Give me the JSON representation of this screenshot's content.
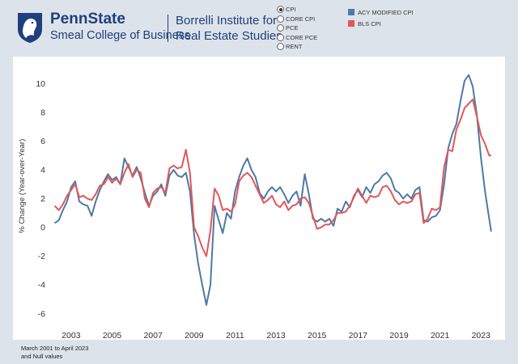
{
  "header": {
    "brand_name": "PennState",
    "brand_college": "Smeal College of Business",
    "institute_line1": "Borrelli Institute for",
    "institute_line2": "Real Estate Studies"
  },
  "measure_options": [
    {
      "label": "CPI",
      "selected": true
    },
    {
      "label": "CORE CPI",
      "selected": false
    },
    {
      "label": "PCE",
      "selected": false
    },
    {
      "label": "CORE PCE",
      "selected": false
    },
    {
      "label": "RENT",
      "selected": false
    }
  ],
  "legend": [
    {
      "label": "ACY MODIFIED CPI",
      "color": "#4e79a7"
    },
    {
      "label": "BLS CPI",
      "color": "#e15759"
    }
  ],
  "footnote": {
    "line1": "March 2001 to April 2023",
    "line2": "and Null values"
  },
  "chart_data": {
    "type": "line",
    "ylabel": "% Change (Year-over-Year)",
    "xlabel": "",
    "title": "",
    "xlim": [
      2001.9,
      2023.7
    ],
    "ylim": [
      -6.8,
      11.2
    ],
    "y_ticks": [
      10,
      8,
      6,
      4,
      2,
      0,
      -2,
      -4,
      -6
    ],
    "x_ticks": [
      2003,
      2005,
      2007,
      2009,
      2011,
      2013,
      2015,
      2017,
      2019,
      2021,
      2023
    ],
    "grid": false,
    "series": [
      {
        "name": "ACY MODIFIED CPI",
        "color": "#4e79a7",
        "points": [
          [
            2002.2,
            0.3
          ],
          [
            2002.4,
            0.5
          ],
          [
            2002.6,
            1.2
          ],
          [
            2002.8,
            1.8
          ],
          [
            2003.0,
            2.8
          ],
          [
            2003.2,
            3.2
          ],
          [
            2003.4,
            1.8
          ],
          [
            2003.6,
            1.6
          ],
          [
            2003.8,
            1.5
          ],
          [
            2004.0,
            0.8
          ],
          [
            2004.2,
            1.8
          ],
          [
            2004.4,
            2.6
          ],
          [
            2004.6,
            3.2
          ],
          [
            2004.8,
            3.7
          ],
          [
            2005.0,
            3.3
          ],
          [
            2005.2,
            3.5
          ],
          [
            2005.4,
            3.0
          ],
          [
            2005.6,
            4.8
          ],
          [
            2005.8,
            4.2
          ],
          [
            2006.0,
            3.6
          ],
          [
            2006.2,
            4.2
          ],
          [
            2006.4,
            3.4
          ],
          [
            2006.6,
            2.4
          ],
          [
            2006.8,
            1.5
          ],
          [
            2007.0,
            2.2
          ],
          [
            2007.2,
            2.5
          ],
          [
            2007.4,
            3.0
          ],
          [
            2007.6,
            2.2
          ],
          [
            2007.8,
            3.6
          ],
          [
            2008.0,
            4.0
          ],
          [
            2008.2,
            3.6
          ],
          [
            2008.4,
            3.5
          ],
          [
            2008.6,
            3.8
          ],
          [
            2008.8,
            2.5
          ],
          [
            2009.0,
            -0.5
          ],
          [
            2009.2,
            -2.5
          ],
          [
            2009.4,
            -4.0
          ],
          [
            2009.6,
            -5.4
          ],
          [
            2009.8,
            -4.0
          ],
          [
            2010.0,
            1.5
          ],
          [
            2010.2,
            0.5
          ],
          [
            2010.4,
            -0.4
          ],
          [
            2010.6,
            1.0
          ],
          [
            2010.8,
            0.6
          ],
          [
            2011.0,
            2.5
          ],
          [
            2011.2,
            3.5
          ],
          [
            2011.4,
            4.3
          ],
          [
            2011.6,
            4.8
          ],
          [
            2011.8,
            4.0
          ],
          [
            2012.0,
            3.5
          ],
          [
            2012.2,
            2.4
          ],
          [
            2012.4,
            2.0
          ],
          [
            2012.6,
            2.5
          ],
          [
            2012.8,
            2.8
          ],
          [
            2013.0,
            2.5
          ],
          [
            2013.2,
            2.8
          ],
          [
            2013.4,
            2.3
          ],
          [
            2013.6,
            1.7
          ],
          [
            2013.8,
            2.2
          ],
          [
            2014.0,
            2.5
          ],
          [
            2014.2,
            1.5
          ],
          [
            2014.4,
            3.7
          ],
          [
            2014.6,
            2.3
          ],
          [
            2014.8,
            0.6
          ],
          [
            2015.0,
            0.4
          ],
          [
            2015.2,
            0.6
          ],
          [
            2015.4,
            0.4
          ],
          [
            2015.6,
            0.6
          ],
          [
            2015.8,
            0.1
          ],
          [
            2016.0,
            1.3
          ],
          [
            2016.2,
            1.1
          ],
          [
            2016.4,
            1.8
          ],
          [
            2016.6,
            1.4
          ],
          [
            2016.8,
            2.2
          ],
          [
            2017.0,
            2.6
          ],
          [
            2017.2,
            2.1
          ],
          [
            2017.4,
            2.8
          ],
          [
            2017.6,
            2.4
          ],
          [
            2017.8,
            3.0
          ],
          [
            2018.0,
            3.2
          ],
          [
            2018.2,
            3.6
          ],
          [
            2018.4,
            3.8
          ],
          [
            2018.6,
            3.4
          ],
          [
            2018.8,
            2.6
          ],
          [
            2019.0,
            2.4
          ],
          [
            2019.2,
            2.0
          ],
          [
            2019.4,
            2.3
          ],
          [
            2019.6,
            2.0
          ],
          [
            2019.8,
            2.6
          ],
          [
            2020.0,
            2.8
          ],
          [
            2020.2,
            0.5
          ],
          [
            2020.4,
            0.4
          ],
          [
            2020.6,
            0.7
          ],
          [
            2020.8,
            0.8
          ],
          [
            2021.0,
            1.2
          ],
          [
            2021.2,
            3.0
          ],
          [
            2021.4,
            5.5
          ],
          [
            2021.6,
            6.5
          ],
          [
            2021.8,
            7.2
          ],
          [
            2022.0,
            8.8
          ],
          [
            2022.2,
            10.2
          ],
          [
            2022.4,
            10.6
          ],
          [
            2022.6,
            9.8
          ],
          [
            2022.8,
            7.8
          ],
          [
            2023.0,
            4.8
          ],
          [
            2023.2,
            2.5
          ],
          [
            2023.4,
            0.6
          ],
          [
            2023.5,
            -0.3
          ]
        ]
      },
      {
        "name": "BLS CPI",
        "color": "#e15759",
        "points": [
          [
            2002.2,
            1.5
          ],
          [
            2002.4,
            1.2
          ],
          [
            2002.6,
            1.6
          ],
          [
            2002.8,
            2.2
          ],
          [
            2003.0,
            2.6
          ],
          [
            2003.2,
            3.0
          ],
          [
            2003.4,
            2.1
          ],
          [
            2003.6,
            2.2
          ],
          [
            2003.8,
            2.0
          ],
          [
            2004.0,
            1.9
          ],
          [
            2004.2,
            2.3
          ],
          [
            2004.4,
            2.9
          ],
          [
            2004.6,
            3.0
          ],
          [
            2004.8,
            3.5
          ],
          [
            2005.0,
            3.1
          ],
          [
            2005.2,
            3.4
          ],
          [
            2005.4,
            3.0
          ],
          [
            2005.6,
            3.8
          ],
          [
            2005.8,
            4.4
          ],
          [
            2006.0,
            3.5
          ],
          [
            2006.2,
            4.0
          ],
          [
            2006.4,
            3.8
          ],
          [
            2006.6,
            2.0
          ],
          [
            2006.8,
            1.4
          ],
          [
            2007.0,
            2.4
          ],
          [
            2007.2,
            2.7
          ],
          [
            2007.4,
            2.8
          ],
          [
            2007.6,
            2.4
          ],
          [
            2007.8,
            4.1
          ],
          [
            2008.0,
            4.3
          ],
          [
            2008.2,
            4.1
          ],
          [
            2008.4,
            4.2
          ],
          [
            2008.6,
            5.4
          ],
          [
            2008.8,
            3.8
          ],
          [
            2009.0,
            0.0
          ],
          [
            2009.2,
            -0.6
          ],
          [
            2009.4,
            -1.4
          ],
          [
            2009.6,
            -2.0
          ],
          [
            2009.8,
            -0.2
          ],
          [
            2010.0,
            2.7
          ],
          [
            2010.2,
            2.2
          ],
          [
            2010.4,
            1.2
          ],
          [
            2010.6,
            1.3
          ],
          [
            2010.8,
            1.1
          ],
          [
            2011.0,
            1.6
          ],
          [
            2011.2,
            3.2
          ],
          [
            2011.4,
            3.6
          ],
          [
            2011.6,
            3.8
          ],
          [
            2011.8,
            3.5
          ],
          [
            2012.0,
            2.9
          ],
          [
            2012.2,
            2.3
          ],
          [
            2012.4,
            1.7
          ],
          [
            2012.6,
            1.9
          ],
          [
            2012.8,
            2.2
          ],
          [
            2013.0,
            1.6
          ],
          [
            2013.2,
            1.4
          ],
          [
            2013.4,
            1.8
          ],
          [
            2013.6,
            1.2
          ],
          [
            2013.8,
            1.5
          ],
          [
            2014.0,
            1.6
          ],
          [
            2014.2,
            2.0
          ],
          [
            2014.4,
            2.1
          ],
          [
            2014.6,
            1.7
          ],
          [
            2014.8,
            0.8
          ],
          [
            2015.0,
            -0.1
          ],
          [
            2015.2,
            0.0
          ],
          [
            2015.4,
            0.2
          ],
          [
            2015.6,
            0.2
          ],
          [
            2015.8,
            0.5
          ],
          [
            2016.0,
            1.0
          ],
          [
            2016.2,
            1.0
          ],
          [
            2016.4,
            1.1
          ],
          [
            2016.6,
            1.5
          ],
          [
            2016.8,
            2.1
          ],
          [
            2017.0,
            2.7
          ],
          [
            2017.2,
            2.2
          ],
          [
            2017.4,
            1.7
          ],
          [
            2017.6,
            2.2
          ],
          [
            2017.8,
            2.1
          ],
          [
            2018.0,
            2.2
          ],
          [
            2018.2,
            2.8
          ],
          [
            2018.4,
            2.9
          ],
          [
            2018.6,
            2.5
          ],
          [
            2018.8,
            1.9
          ],
          [
            2019.0,
            1.6
          ],
          [
            2019.2,
            1.8
          ],
          [
            2019.4,
            1.7
          ],
          [
            2019.6,
            1.8
          ],
          [
            2019.8,
            2.3
          ],
          [
            2020.0,
            2.4
          ],
          [
            2020.2,
            0.3
          ],
          [
            2020.4,
            0.6
          ],
          [
            2020.6,
            1.3
          ],
          [
            2020.8,
            1.2
          ],
          [
            2021.0,
            1.4
          ],
          [
            2021.2,
            4.2
          ],
          [
            2021.4,
            5.4
          ],
          [
            2021.6,
            5.3
          ],
          [
            2021.8,
            6.8
          ],
          [
            2022.0,
            7.5
          ],
          [
            2022.2,
            8.3
          ],
          [
            2022.4,
            8.6
          ],
          [
            2022.6,
            8.9
          ],
          [
            2022.8,
            7.7
          ],
          [
            2023.0,
            6.4
          ],
          [
            2023.2,
            5.8
          ],
          [
            2023.4,
            5.0
          ],
          [
            2023.5,
            5.0
          ]
        ]
      }
    ]
  }
}
